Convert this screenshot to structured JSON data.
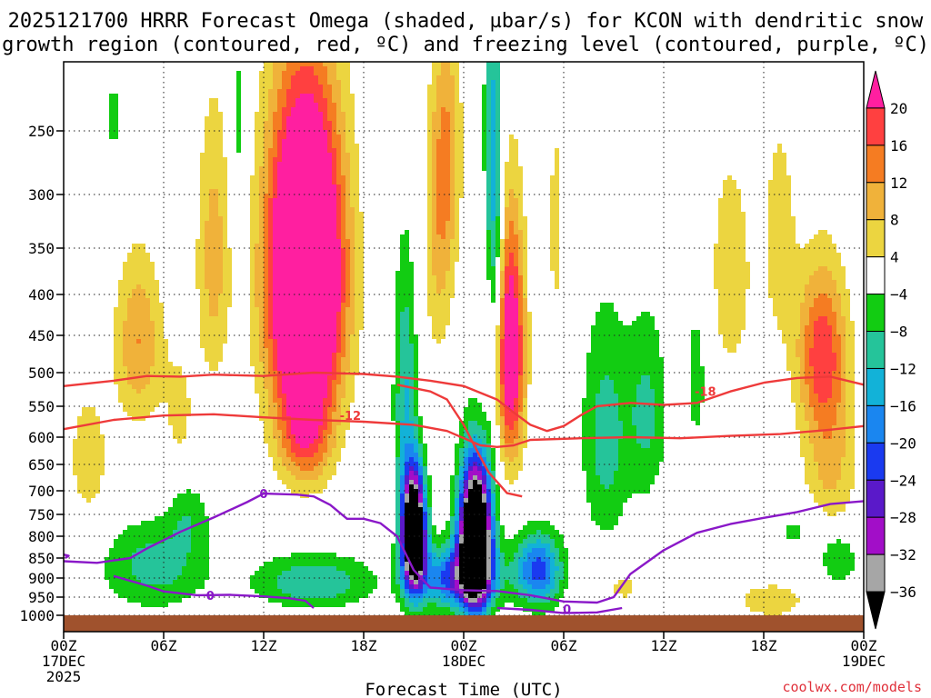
{
  "chart_data": {
    "type": "heatmap",
    "title_line1": "2025121700 HRRR Forecast Omega (shaded, µbar/s) for KCON with dendritic snow",
    "title_line2": "growth region (contoured, red, ºC) and freezing level (contoured, purple, ºC)",
    "xlabel": "Forecast Time (UTC)",
    "credit": "coolwx.com/models",
    "xlim": [
      0,
      48
    ],
    "x_ticks": [
      {
        "hour": 0,
        "lines": [
          "00Z",
          "17DEC",
          "2025"
        ]
      },
      {
        "hour": 6,
        "lines": [
          "06Z"
        ]
      },
      {
        "hour": 12,
        "lines": [
          "12Z"
        ]
      },
      {
        "hour": 18,
        "lines": [
          "18Z"
        ]
      },
      {
        "hour": 24,
        "lines": [
          "00Z",
          "18DEC"
        ]
      },
      {
        "hour": 30,
        "lines": [
          "06Z"
        ]
      },
      {
        "hour": 36,
        "lines": [
          "12Z"
        ]
      },
      {
        "hour": 42,
        "lines": [
          "18Z"
        ]
      },
      {
        "hour": 48,
        "lines": [
          "00Z",
          "19DEC"
        ]
      }
    ],
    "ylim": [
      1000,
      200
    ],
    "y_ticks": [
      250,
      300,
      350,
      400,
      450,
      500,
      550,
      600,
      650,
      700,
      750,
      800,
      850,
      900,
      950,
      1000
    ],
    "colorbar": {
      "labels": [
        "20",
        "16",
        "12",
        "8",
        "4",
        "−4",
        "−8",
        "−12",
        "−16",
        "−20",
        "−24",
        "−28",
        "−32",
        "−36"
      ],
      "colors": [
        "#ff1fa0",
        "#ff4040",
        "#f57c22",
        "#f0b23a",
        "#ecd540",
        "#ffffff",
        "#12cc12",
        "#25c49a",
        "#12b2d8",
        "#1a86f0",
        "#1a3af0",
        "#5a19c9",
        "#a20ec8",
        "#a6a6a6",
        "#000000"
      ]
    },
    "omega_levels": [
      -36,
      -32,
      -28,
      -24,
      -20,
      -16,
      -12,
      -8,
      -4,
      4,
      8,
      12,
      16,
      20
    ],
    "omega_centers": [
      {
        "hour": 14.5,
        "p": 380,
        "sh": 2.2,
        "sp": 170,
        "v": 48
      },
      {
        "hour": 14.5,
        "p": 600,
        "sh": 1.6,
        "sp": 90,
        "v": 14
      },
      {
        "hour": 9.0,
        "p": 360,
        "sh": 1.0,
        "sp": 140,
        "v": 10
      },
      {
        "hour": 4.5,
        "p": 460,
        "sh": 1.4,
        "sp": 110,
        "v": 12
      },
      {
        "hour": 1.5,
        "p": 640,
        "sh": 1.2,
        "sp": 120,
        "v": 7
      },
      {
        "hour": 7.0,
        "p": 560,
        "sh": 1.0,
        "sp": 110,
        "v": 5
      },
      {
        "hour": 22.5,
        "p": 350,
        "sh": 0.9,
        "sp": 130,
        "v": 8
      },
      {
        "hour": 23.0,
        "p": 260,
        "sh": 0.9,
        "sp": 100,
        "v": 10
      },
      {
        "hour": 26.8,
        "p": 470,
        "sh": 0.85,
        "sp": 160,
        "v": 28
      },
      {
        "hour": 25.5,
        "p": 420,
        "sh": 0.6,
        "sp": 120,
        "v": 7
      },
      {
        "hour": 29.5,
        "p": 330,
        "sh": 0.5,
        "sp": 150,
        "v": 5
      },
      {
        "hour": 40.0,
        "p": 380,
        "sh": 1.6,
        "sp": 150,
        "v": 6
      },
      {
        "hour": 45.5,
        "p": 470,
        "sh": 1.5,
        "sp": 110,
        "v": 18
      },
      {
        "hour": 43.0,
        "p": 340,
        "sh": 1.0,
        "sp": 120,
        "v": 6
      },
      {
        "hour": 46.0,
        "p": 650,
        "sh": 1.6,
        "sp": 140,
        "v": 9
      },
      {
        "hour": 33.5,
        "p": 920,
        "sh": 1.5,
        "sp": 70,
        "v": 5
      },
      {
        "hour": 42.5,
        "p": 960,
        "sh": 2.5,
        "sp": 60,
        "v": 6
      },
      {
        "hour": 21.0,
        "p": 790,
        "sh": 0.7,
        "sp": 130,
        "v": -58
      },
      {
        "hour": 24.7,
        "p": 800,
        "sh": 0.95,
        "sp": 160,
        "v": -62
      },
      {
        "hour": 23.5,
        "p": 900,
        "sh": 2.4,
        "sp": 80,
        "v": -22
      },
      {
        "hour": 25.8,
        "p": 330,
        "sh": 0.55,
        "sp": 200,
        "v": -18
      },
      {
        "hour": 20.5,
        "p": 530,
        "sh": 0.7,
        "sp": 190,
        "v": -12
      },
      {
        "hour": 28.5,
        "p": 880,
        "sh": 1.4,
        "sp": 90,
        "v": -22
      },
      {
        "hour": 15.0,
        "p": 910,
        "sh": 3.5,
        "sp": 70,
        "v": -12
      },
      {
        "hour": 5.5,
        "p": 870,
        "sh": 3.2,
        "sp": 110,
        "v": -10
      },
      {
        "hour": 7.5,
        "p": 750,
        "sh": 1.2,
        "sp": 80,
        "v": -6
      },
      {
        "hour": 32.5,
        "p": 600,
        "sh": 1.4,
        "sp": 200,
        "v": -10
      },
      {
        "hour": 35.0,
        "p": 560,
        "sh": 1.2,
        "sp": 150,
        "v": -9
      },
      {
        "hour": 38.0,
        "p": 500,
        "sh": 0.8,
        "sp": 140,
        "v": -6
      },
      {
        "hour": 10.5,
        "p": 250,
        "sh": 0.5,
        "sp": 100,
        "v": -6
      },
      {
        "hour": 3.0,
        "p": 240,
        "sh": 0.4,
        "sp": 60,
        "v": -5
      },
      {
        "hour": 46.5,
        "p": 850,
        "sh": 1.2,
        "sp": 70,
        "v": -8
      },
      {
        "hour": 44.0,
        "p": 790,
        "sh": 1.5,
        "sp": 60,
        "v": -5
      }
    ],
    "dgz_contours": [
      {
        "label": "-12",
        "label_at": [
          17.2,
          565
        ],
        "points": [
          [
            0,
            587
          ],
          [
            3,
            572
          ],
          [
            6,
            565
          ],
          [
            9,
            563
          ],
          [
            12,
            568
          ],
          [
            15,
            572
          ],
          [
            18,
            575
          ],
          [
            21,
            580
          ],
          [
            23,
            590
          ],
          [
            25,
            615
          ],
          [
            26,
            618
          ],
          [
            27,
            615
          ],
          [
            28,
            605
          ],
          [
            31,
            602
          ],
          [
            34,
            600
          ],
          [
            37,
            602
          ],
          [
            40,
            598
          ],
          [
            43,
            595
          ],
          [
            46,
            588
          ],
          [
            48,
            582
          ]
        ]
      },
      {
        "label": "-18",
        "label_at": [
          38.5,
          528
        ],
        "points": [
          [
            0,
            520
          ],
          [
            3,
            512
          ],
          [
            5,
            505
          ],
          [
            7,
            506
          ],
          [
            9,
            503
          ],
          [
            12,
            505
          ],
          [
            15,
            500
          ],
          [
            18,
            502
          ],
          [
            20,
            506
          ],
          [
            22,
            512
          ],
          [
            24,
            520
          ],
          [
            26,
            540
          ],
          [
            27,
            560
          ],
          [
            28,
            580
          ],
          [
            29,
            590
          ],
          [
            30,
            582
          ],
          [
            31,
            565
          ],
          [
            32,
            550
          ],
          [
            34,
            545
          ],
          [
            36,
            548
          ],
          [
            38,
            545
          ],
          [
            40,
            528
          ],
          [
            42,
            515
          ],
          [
            44,
            508
          ],
          [
            46,
            506
          ],
          [
            48,
            518
          ]
        ]
      },
      {
        "label": "",
        "label_at": null,
        "points": [
          [
            20,
            518
          ],
          [
            22,
            528
          ],
          [
            23,
            540
          ],
          [
            24,
            580
          ],
          [
            24.8,
            625
          ],
          [
            25.5,
            665
          ],
          [
            26.6,
            705
          ],
          [
            27.5,
            712
          ]
        ]
      }
    ],
    "freezing_contours": [
      {
        "label": "0",
        "label_at": [
          12,
          706
        ],
        "points": [
          [
            0,
            858
          ],
          [
            2,
            862
          ],
          [
            4,
            850
          ],
          [
            5,
            828
          ],
          [
            7,
            790
          ],
          [
            9,
            757
          ],
          [
            11,
            724
          ],
          [
            12,
            706
          ],
          [
            14,
            708
          ],
          [
            15,
            712
          ],
          [
            16,
            730
          ],
          [
            17,
            760
          ],
          [
            18,
            760
          ],
          [
            19,
            770
          ],
          [
            20,
            800
          ],
          [
            21,
            880
          ],
          [
            22,
            925
          ],
          [
            24,
            932
          ],
          [
            26,
            934
          ],
          [
            28,
            945
          ],
          [
            30,
            962
          ],
          [
            32,
            965
          ],
          [
            33,
            950
          ],
          [
            34,
            890
          ],
          [
            36,
            832
          ],
          [
            38,
            792
          ],
          [
            40,
            772
          ],
          [
            42,
            758
          ],
          [
            44,
            745
          ],
          [
            46,
            728
          ],
          [
            48,
            722
          ]
        ]
      },
      {
        "label": "0",
        "label_at": [
          8.8,
          945
        ],
        "points": [
          [
            3,
            895
          ],
          [
            5,
            920
          ],
          [
            6,
            935
          ],
          [
            8,
            945
          ],
          [
            10,
            944
          ],
          [
            12,
            948
          ],
          [
            13.5,
            953
          ],
          [
            14.5,
            960
          ],
          [
            15,
            980
          ]
        ]
      },
      {
        "label": "0",
        "label_at": [
          30.2,
          982
        ],
        "points": [
          [
            33.5,
            980
          ],
          [
            32,
            992
          ],
          [
            30,
            994
          ],
          [
            28,
            985
          ],
          [
            26,
            980
          ]
        ]
      },
      {
        "label": "",
        "label_at": null,
        "points": [
          [
            0,
            842
          ],
          [
            0.3,
            845
          ],
          [
            0.1,
            850
          ]
        ]
      }
    ]
  }
}
